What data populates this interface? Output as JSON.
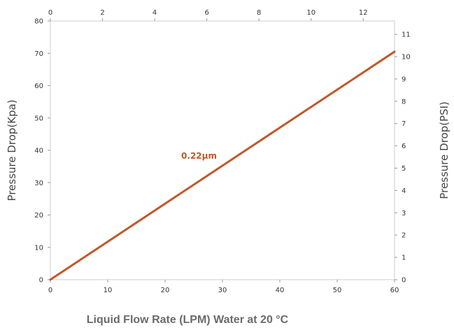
{
  "chart_data": {
    "type": "line",
    "xlabel": "Liquid Flow Rate (LPM) Water at 20 °C",
    "ylabel": "Pressure Drop(Kpa)",
    "y2label": "Pressure Drop(PSI)",
    "xlim": [
      0,
      60
    ],
    "ylim": [
      0,
      80
    ],
    "x2lim": [
      0,
      13.2
    ],
    "y2lim": [
      0,
      11.6
    ],
    "x_ticks": [
      "0",
      "10",
      "20",
      "30",
      "40",
      "50",
      "60"
    ],
    "y_ticks": [
      "0",
      "10",
      "20",
      "30",
      "40",
      "50",
      "60",
      "70",
      "80"
    ],
    "x2_ticks": [
      "0",
      "2",
      "4",
      "6",
      "8",
      "10",
      "12"
    ],
    "y2_ticks": [
      "0",
      "1",
      "2",
      "3",
      "4",
      "5",
      "6",
      "7",
      "8",
      "9",
      "10",
      "11"
    ],
    "grid": false,
    "series": [
      {
        "name": "0.22μm",
        "color": "#c0582a",
        "x": [
          0,
          60
        ],
        "y": [
          0,
          70.5
        ]
      }
    ]
  }
}
